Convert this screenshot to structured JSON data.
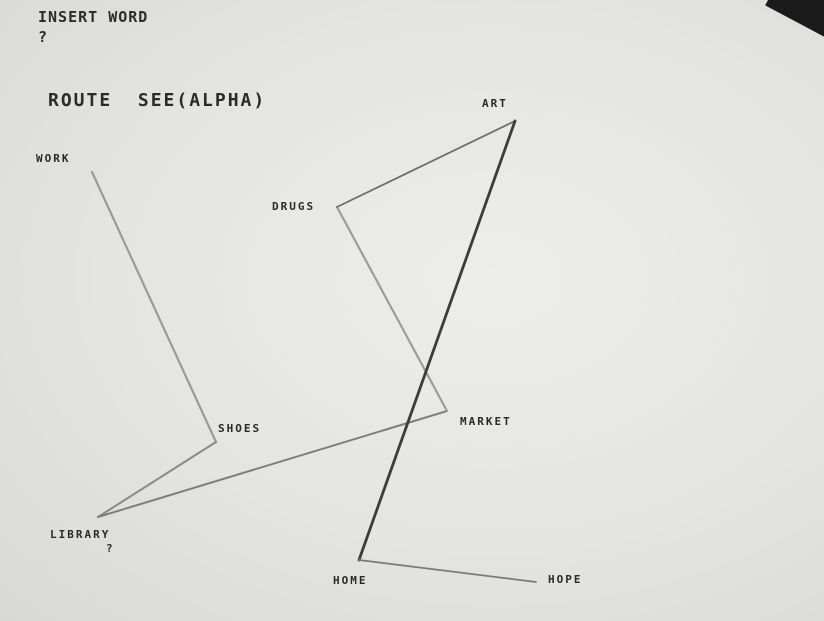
{
  "terminal": {
    "prompt": "INSERT WORD",
    "input_marker": "?",
    "route_command": "ROUTE  SEE(ALPHA)"
  },
  "graph": {
    "nodes": [
      {
        "id": "work",
        "label": "WORK"
      },
      {
        "id": "drugs",
        "label": "DRUGS"
      },
      {
        "id": "art",
        "label": "ART"
      },
      {
        "id": "shoes",
        "label": "SHOES"
      },
      {
        "id": "market",
        "label": "MARKET"
      },
      {
        "id": "library",
        "label": "LIBRARY"
      },
      {
        "id": "home",
        "label": "HOME"
      },
      {
        "id": "hope",
        "label": "HOPE"
      }
    ],
    "cursor_marker": "?",
    "route_order": [
      "work",
      "shoes",
      "library",
      "market",
      "drugs",
      "art",
      "home",
      "hope"
    ]
  }
}
